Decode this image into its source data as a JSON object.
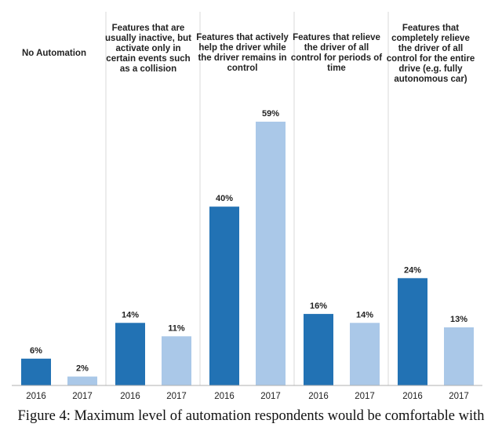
{
  "chart_data": {
    "type": "bar",
    "categories": [
      "No Automation",
      "Features that are usually inactive, but activate only in certain events such as a collision",
      "Features that actively help the driver while the driver remains in control",
      "Features that relieve the driver of all control for periods of time",
      "Features that completely relieve the driver of all control for the entire drive (e.g. fully autonomous car)"
    ],
    "series": [
      {
        "name": "2016",
        "values": [
          6,
          14,
          40,
          16,
          24
        ],
        "labels": [
          "6%",
          "14%",
          "40%",
          "16%",
          "24%"
        ]
      },
      {
        "name": "2017",
        "values": [
          2,
          11,
          59,
          14,
          13
        ],
        "labels": [
          "2%",
          "11%",
          "59%",
          "14%",
          "13%"
        ]
      }
    ],
    "ylim": [
      0,
      70
    ],
    "grid": false,
    "colors": {
      "2016": "#2272b4",
      "2017": "#aac8e8",
      "divider": "#d9d9d9",
      "axis": "#b0b0b0"
    }
  },
  "caption": "Figure 4: Maximum level of automation respondents would be comfortable with"
}
